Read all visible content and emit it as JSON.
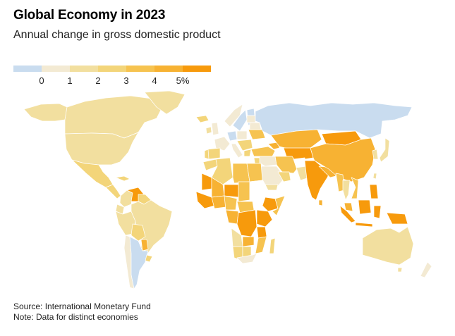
{
  "header": {
    "title": "Global Economy in 2023",
    "subtitle": "Annual change in gross domestic product"
  },
  "legend": {
    "colors": [
      "#c9dcef",
      "#f3ead3",
      "#f2df9f",
      "#f3d57a",
      "#f6c350",
      "#f7b233",
      "#f79a0c"
    ],
    "ticks": [
      "0",
      "1",
      "2",
      "3",
      "4",
      "5%"
    ]
  },
  "map": {
    "bins": {
      "neg": "#c9dcef",
      "b0": "#f3ead3",
      "b1": "#f2df9f",
      "b2": "#f3d57a",
      "b3": "#f6c350",
      "b4": "#f7b233",
      "b5": "#f79a0c",
      "na": "#ffffff"
    }
  },
  "footer": {
    "source": "Source: International Monetary Fund",
    "note": "Note: Data for distinct economies"
  }
}
